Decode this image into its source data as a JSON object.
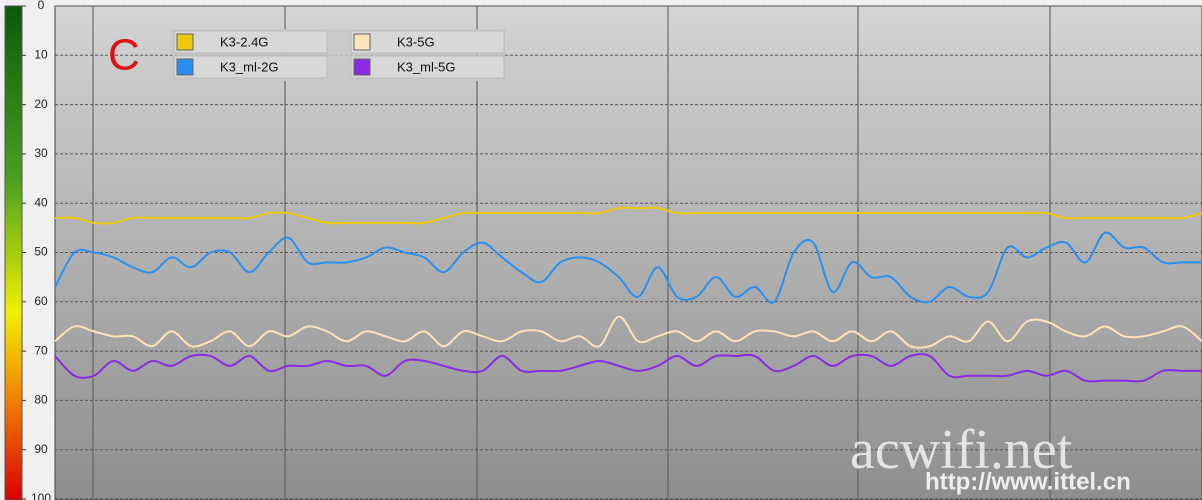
{
  "chart_data": {
    "type": "line",
    "annotation": "C",
    "watermark": "acwifi.net",
    "watermark_url": "http://www.ittel.cn",
    "ylim": [
      0,
      100
    ],
    "yticks": [
      0,
      10,
      20,
      30,
      40,
      50,
      60,
      70,
      80,
      90,
      100
    ],
    "inverted_y": true,
    "grid": true,
    "legend_position": "top-left",
    "categories": [
      null,
      null,
      null,
      null,
      null,
      null,
      null,
      null,
      null,
      null,
      null,
      null,
      null,
      null,
      null,
      null,
      null,
      null,
      null,
      null,
      null,
      null,
      null,
      null,
      null,
      null,
      null,
      null,
      null,
      null,
      null,
      null,
      null,
      null,
      null,
      null,
      null,
      null,
      null,
      null,
      null,
      null,
      null,
      null,
      null,
      null,
      null,
      null,
      null,
      null,
      null,
      null,
      null,
      null,
      null,
      null,
      null,
      null,
      null,
      null
    ],
    "series": [
      {
        "name": "K3-2.4G",
        "color": "#f0c808",
        "values": [
          43,
          43,
          44,
          44,
          43,
          43,
          43,
          43,
          43,
          43,
          43,
          42,
          42,
          43,
          44,
          44,
          44,
          44,
          44,
          44,
          43,
          42,
          42,
          42,
          42,
          42,
          42,
          42,
          42,
          41,
          41,
          41,
          42,
          42,
          42,
          42,
          42,
          42,
          42,
          42,
          42,
          42,
          42,
          42,
          42,
          42,
          42,
          42,
          42,
          42,
          42,
          42,
          43,
          43,
          43,
          43,
          43,
          43,
          43,
          42
        ]
      },
      {
        "name": "K3_ml-2G",
        "color": "#2a8ff0",
        "values": [
          57,
          50,
          50,
          51,
          53,
          54,
          51,
          53,
          50,
          50,
          54,
          50,
          47,
          52,
          52,
          52,
          51,
          49,
          50,
          51,
          54,
          50,
          48,
          51,
          54,
          56,
          52,
          51,
          52,
          55,
          59,
          53,
          59,
          59,
          55,
          59,
          57,
          60,
          50,
          48,
          58,
          52,
          55,
          55,
          59,
          60,
          57,
          59,
          58,
          49,
          51,
          49,
          48,
          52,
          46,
          49,
          49,
          52,
          52,
          52
        ]
      },
      {
        "name": "K3-5G",
        "color": "#fde4b6",
        "values": [
          68,
          65,
          66,
          67,
          67,
          69,
          66,
          69,
          68,
          66,
          69,
          66,
          67,
          65,
          66,
          68,
          66,
          67,
          68,
          66,
          69,
          66,
          67,
          68,
          66,
          66,
          68,
          67,
          69,
          63,
          68,
          67,
          66,
          68,
          66,
          68,
          66,
          66,
          67,
          66,
          68,
          66,
          68,
          66,
          69,
          69,
          67,
          68,
          64,
          68,
          64,
          64,
          66,
          67,
          65,
          67,
          67,
          66,
          65,
          68
        ]
      },
      {
        "name": "K3_ml-5G",
        "color": "#8a2be2",
        "values": [
          71,
          75,
          75,
          72,
          74,
          72,
          73,
          71,
          71,
          73,
          71,
          74,
          73,
          73,
          72,
          73,
          73,
          75,
          72,
          72,
          73,
          74,
          74,
          71,
          74,
          74,
          74,
          73,
          72,
          73,
          74,
          73,
          71,
          73,
          71,
          71,
          71,
          74,
          73,
          71,
          73,
          71,
          71,
          73,
          71,
          71,
          75,
          75,
          75,
          75,
          74,
          75,
          74,
          76,
          76,
          76,
          76,
          74,
          74,
          74
        ]
      }
    ]
  }
}
